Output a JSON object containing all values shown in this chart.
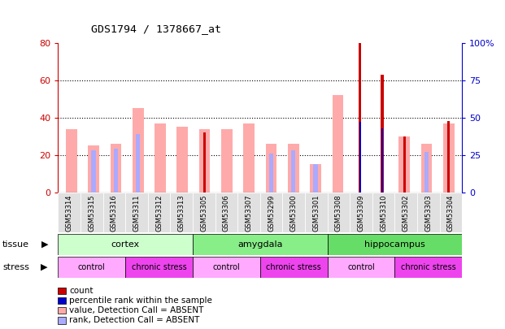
{
  "title": "GDS1794 / 1378667_at",
  "samples": [
    "GSM53314",
    "GSM53315",
    "GSM53316",
    "GSM53311",
    "GSM53312",
    "GSM53313",
    "GSM53305",
    "GSM53306",
    "GSM53307",
    "GSM53299",
    "GSM53300",
    "GSM53301",
    "GSM53308",
    "GSM53309",
    "GSM53310",
    "GSM53302",
    "GSM53303",
    "GSM53304"
  ],
  "count_values": [
    0,
    0,
    0,
    0,
    0,
    0,
    32,
    0,
    0,
    0,
    0,
    0,
    0,
    80,
    63,
    30,
    0,
    38
  ],
  "percentile_values": [
    0,
    0,
    0,
    0,
    0,
    0,
    0,
    0,
    0,
    0,
    0,
    0,
    0,
    47,
    43,
    0,
    0,
    0
  ],
  "absent_value": [
    34,
    25,
    26,
    45,
    37,
    35,
    34,
    34,
    37,
    26,
    26,
    15,
    52,
    0,
    0,
    30,
    26,
    37
  ],
  "absent_rank": [
    0,
    28,
    29,
    39,
    0,
    0,
    0,
    0,
    0,
    26,
    28,
    19,
    0,
    0,
    0,
    0,
    27,
    0
  ],
  "ylim_left": [
    0,
    80
  ],
  "ylim_right": [
    0,
    100
  ],
  "yticks_left": [
    0,
    20,
    40,
    60,
    80
  ],
  "yticks_right": [
    0,
    25,
    50,
    75,
    100
  ],
  "ytick_labels_right": [
    "0",
    "25",
    "50",
    "75",
    "100%"
  ],
  "tissue_groups": [
    {
      "label": "cortex",
      "start": 0,
      "end": 6,
      "color": "#ccffcc"
    },
    {
      "label": "amygdala",
      "start": 6,
      "end": 12,
      "color": "#88ee88"
    },
    {
      "label": "hippocampus",
      "start": 12,
      "end": 18,
      "color": "#66dd66"
    }
  ],
  "stress_groups": [
    {
      "label": "control",
      "start": 0,
      "end": 3,
      "color": "#ffaaff"
    },
    {
      "label": "chronic stress",
      "start": 3,
      "end": 6,
      "color": "#ee44ee"
    },
    {
      "label": "control",
      "start": 6,
      "end": 9,
      "color": "#ffaaff"
    },
    {
      "label": "chronic stress",
      "start": 9,
      "end": 12,
      "color": "#ee44ee"
    },
    {
      "label": "control",
      "start": 12,
      "end": 15,
      "color": "#ffaaff"
    },
    {
      "label": "chronic stress",
      "start": 15,
      "end": 18,
      "color": "#ee44ee"
    }
  ],
  "count_color": "#cc0000",
  "percentile_color": "#0000cc",
  "absent_value_color": "#ffaaaa",
  "absent_rank_color": "#aaaaff",
  "bg_color": "#ffffff",
  "left_axis_color": "#cc0000",
  "right_axis_color": "#0000cc"
}
